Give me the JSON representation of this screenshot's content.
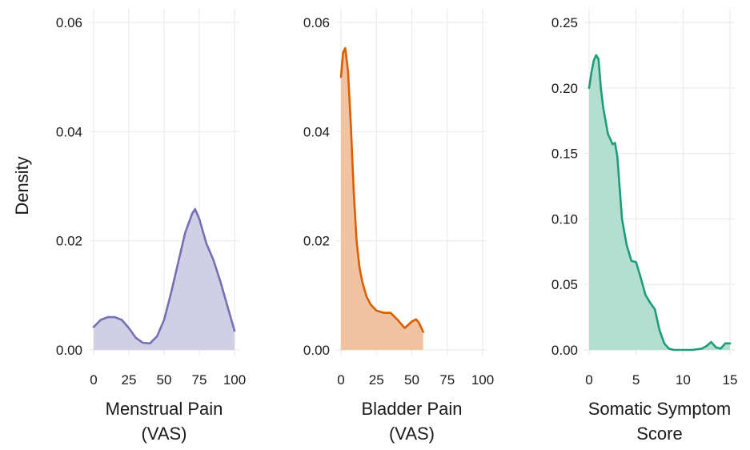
{
  "ylabel": "Density",
  "chart_data": [
    {
      "type": "area",
      "xlabel": [
        "Menstrual Pain",
        "(VAS)"
      ],
      "xlim": [
        0,
        100
      ],
      "ylim": [
        0,
        0.06
      ],
      "xticks": [
        0,
        25,
        50,
        75,
        100
      ],
      "yticks": [
        0.0,
        0.02,
        0.04,
        0.06
      ],
      "ytick_labels": [
        "0.00",
        "0.02",
        "0.04",
        "0.06"
      ],
      "grid": true,
      "color": "#7570b3",
      "fill": "#d1cfe6",
      "x": [
        0,
        5,
        10,
        15,
        20,
        25,
        30,
        35,
        40,
        45,
        50,
        55,
        60,
        65,
        70,
        72,
        75,
        80,
        85,
        90,
        95,
        100
      ],
      "y": [
        0.0042,
        0.0055,
        0.006,
        0.006,
        0.0055,
        0.004,
        0.0022,
        0.0013,
        0.0012,
        0.0025,
        0.0055,
        0.0105,
        0.016,
        0.0215,
        0.025,
        0.0258,
        0.024,
        0.0195,
        0.0165,
        0.0125,
        0.008,
        0.0035
      ]
    },
    {
      "type": "area",
      "xlabel": [
        "Bladder Pain",
        "(VAS)"
      ],
      "xlim": [
        0,
        100
      ],
      "ylim": [
        0,
        0.06
      ],
      "xticks": [
        0,
        25,
        50,
        75,
        100
      ],
      "yticks": [
        0.0,
        0.02,
        0.04,
        0.06
      ],
      "ytick_labels": [
        "0.00",
        "0.02",
        "0.04",
        "0.06"
      ],
      "grid": true,
      "color": "#d95f02",
      "fill": "#f2c3a0",
      "x": [
        0,
        1.5,
        3,
        5,
        7,
        9,
        11,
        13,
        15,
        18,
        21,
        25,
        30,
        35,
        40,
        45,
        50,
        53,
        55,
        58
      ],
      "y": [
        0.05,
        0.0545,
        0.0553,
        0.051,
        0.041,
        0.029,
        0.02,
        0.0152,
        0.0125,
        0.0098,
        0.0083,
        0.0072,
        0.0068,
        0.0068,
        0.0055,
        0.004,
        0.0052,
        0.0056,
        0.005,
        0.0033
      ]
    },
    {
      "type": "area",
      "xlabel": [
        "Somatic Symptom",
        "Score"
      ],
      "xlim": [
        0,
        15
      ],
      "ylim": [
        0,
        0.25
      ],
      "xticks": [
        0,
        5,
        10,
        15
      ],
      "yticks": [
        0.0,
        0.05,
        0.1,
        0.15,
        0.2,
        0.25
      ],
      "ytick_labels": [
        "0.00",
        "0.05",
        "0.10",
        "0.15",
        "0.20",
        "0.25"
      ],
      "grid": true,
      "color": "#1b9e77",
      "fill": "#b3dfd0",
      "x": [
        0,
        0.25,
        0.5,
        0.75,
        1,
        1.25,
        1.5,
        2,
        2.5,
        2.75,
        3,
        3.5,
        4,
        4.5,
        5,
        5.5,
        6,
        6.5,
        7,
        7.5,
        8,
        8.5,
        9,
        9.5,
        10,
        11,
        12,
        12.5,
        13,
        13.5,
        14,
        14.5,
        15
      ],
      "y": [
        0.2,
        0.212,
        0.221,
        0.225,
        0.222,
        0.2,
        0.185,
        0.165,
        0.157,
        0.158,
        0.148,
        0.1,
        0.08,
        0.068,
        0.067,
        0.055,
        0.042,
        0.036,
        0.031,
        0.015,
        0.005,
        0.001,
        0.0,
        0.0,
        0.0,
        0.0,
        0.001,
        0.003,
        0.006,
        0.002,
        0.001,
        0.005,
        0.005
      ]
    }
  ]
}
